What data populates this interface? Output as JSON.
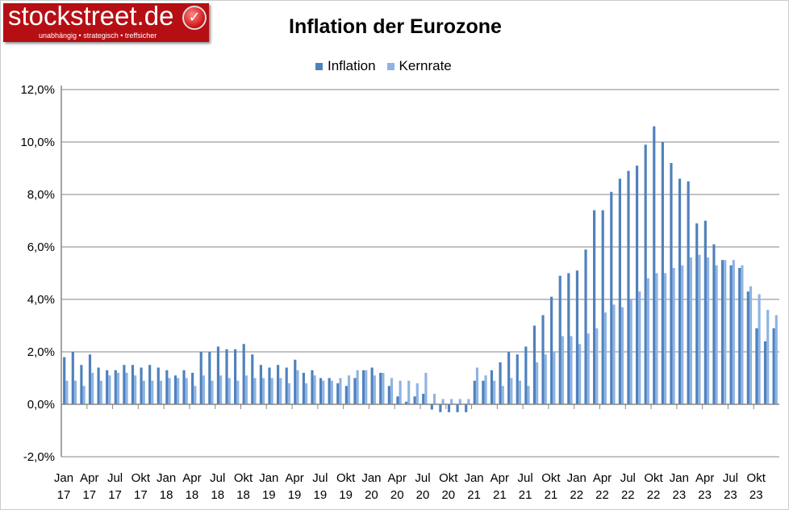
{
  "logo": {
    "brand": "stockstreet.de",
    "tagline": "unabhängig • strategisch • treffsicher"
  },
  "chart_data": {
    "type": "bar",
    "title": "Inflation der Eurozone",
    "legend_position": "top",
    "grid": true,
    "ylim": [
      -2,
      12
    ],
    "yticks": [
      "-2,0%",
      "0,0%",
      "2,0%",
      "4,0%",
      "6,0%",
      "8,0%",
      "10,0%",
      "12,0%"
    ],
    "ytick_values": [
      -2,
      0,
      2,
      4,
      6,
      8,
      10,
      12
    ],
    "xtick_labels": [
      "Jan 17",
      "Apr 17",
      "Jul 17",
      "Okt 17",
      "Jan 18",
      "Apr 18",
      "Jul 18",
      "Okt 18",
      "Jan 19",
      "Apr 19",
      "Jul 19",
      "Okt 19",
      "Jan 20",
      "Apr 20",
      "Jul 20",
      "Okt 20",
      "Jan 21",
      "Apr 21",
      "Jul 21",
      "Okt 21",
      "Jan 22",
      "Apr 22",
      "Jul 22",
      "Okt 22",
      "Jan 23",
      "Apr 23",
      "Jul 23",
      "Okt 23"
    ],
    "categories_start": "2017-01",
    "categories_end": "2023-12",
    "series": [
      {
        "name": "Inflation",
        "color": "#4f81bd",
        "values": [
          1.8,
          2.0,
          1.5,
          1.9,
          1.4,
          1.3,
          1.3,
          1.5,
          1.5,
          1.4,
          1.5,
          1.4,
          1.3,
          1.1,
          1.3,
          1.2,
          2.0,
          2.0,
          2.2,
          2.1,
          2.1,
          2.3,
          1.9,
          1.5,
          1.4,
          1.5,
          1.4,
          1.7,
          1.2,
          1.3,
          1.0,
          1.0,
          0.8,
          0.7,
          1.0,
          1.3,
          1.4,
          1.2,
          0.7,
          0.3,
          0.1,
          0.3,
          0.4,
          -0.2,
          -0.3,
          -0.3,
          -0.3,
          -0.3,
          0.9,
          0.9,
          1.3,
          1.6,
          2.0,
          1.9,
          2.2,
          3.0,
          3.4,
          4.1,
          4.9,
          5.0,
          5.1,
          5.9,
          7.4,
          7.4,
          8.1,
          8.6,
          8.9,
          9.1,
          9.9,
          10.6,
          10.0,
          9.2,
          8.6,
          8.5,
          6.9,
          7.0,
          6.1,
          5.5,
          5.3,
          5.2,
          4.3,
          2.9,
          2.4,
          2.9
        ]
      },
      {
        "name": "Kernrate",
        "color": "#8eb4e3",
        "values": [
          0.9,
          0.9,
          0.7,
          1.2,
          0.9,
          1.1,
          1.2,
          1.2,
          1.1,
          0.9,
          0.9,
          0.9,
          1.0,
          1.0,
          1.0,
          0.7,
          1.1,
          0.9,
          1.1,
          1.0,
          0.9,
          1.1,
          1.0,
          1.0,
          1.0,
          1.0,
          0.8,
          1.3,
          0.8,
          1.1,
          0.9,
          0.9,
          1.0,
          1.1,
          1.3,
          1.3,
          1.1,
          1.2,
          1.0,
          0.9,
          0.9,
          0.8,
          1.2,
          0.4,
          0.2,
          0.2,
          0.2,
          0.2,
          1.4,
          1.1,
          0.9,
          0.7,
          1.0,
          0.9,
          0.7,
          1.6,
          1.9,
          2.0,
          2.6,
          2.6,
          2.3,
          2.7,
          2.9,
          3.5,
          3.8,
          3.7,
          4.0,
          4.3,
          4.8,
          5.0,
          5.0,
          5.2,
          5.3,
          5.6,
          5.7,
          5.6,
          5.3,
          5.5,
          5.5,
          5.3,
          4.5,
          4.2,
          3.6,
          3.4
        ]
      }
    ]
  }
}
